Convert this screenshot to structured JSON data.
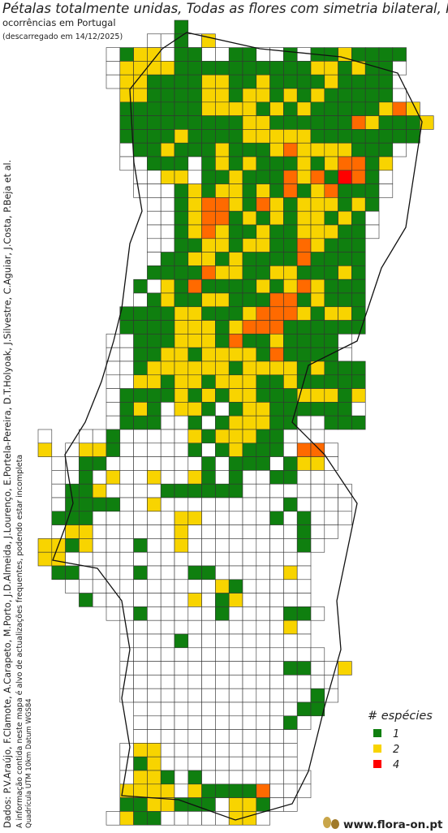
{
  "title": "Pétalas totalmente unidas, Todas as flores com simetria bilateral, Flor",
  "subtitle": "ocorrências em Portugal",
  "download_note": "(descarregado em 14/12/2025)",
  "credits": "Dados: P.V.Araújo, F.Clamote, A.Carapeto, M.Porto, J.D.Almeida, J.Lourenço, E.Portela-Pereira, D.T.Holyoak, J.Silvestre, C.Aguiar, J.Costa, P.Beja et al.",
  "notice": "A informação contida neste mapa é alvo de actualizações frequentes, podendo estar incompleta",
  "grid_note": "Quadrícula UTM 10km Datum WGS84",
  "footer": "www.flora-on.pt",
  "colors": {
    "1": "#0f7f0f",
    "2": "#f8d400",
    "3": "#ff6a00",
    "4": "#ff0000"
  },
  "legend": {
    "title": "# espécies",
    "items": [
      {
        "value": 1
      },
      {
        "value": 2
      },
      {
        "value": 4
      }
    ]
  },
  "grid": {
    "rows": [
      [
        null,
        null,
        null,
        null,
        null,
        null,
        null,
        null,
        null,
        null,
        1
      ],
      [
        null,
        null,
        null,
        null,
        null,
        null,
        null,
        null,
        0,
        0,
        1,
        0,
        2
      ],
      [
        null,
        null,
        null,
        null,
        null,
        0,
        1,
        2,
        2,
        0,
        1,
        1,
        0,
        0,
        1,
        1,
        0,
        0,
        1,
        0,
        1,
        1,
        2,
        1,
        1,
        1,
        1
      ],
      [
        null,
        null,
        null,
        null,
        null,
        0,
        2,
        2,
        2,
        2,
        1,
        1,
        1,
        1,
        1,
        1,
        1,
        1,
        1,
        1,
        2,
        2,
        1,
        2,
        1,
        1,
        0
      ],
      [
        null,
        null,
        null,
        null,
        null,
        0,
        2,
        2,
        1,
        1,
        1,
        1,
        2,
        2,
        1,
        1,
        2,
        1,
        1,
        1,
        1,
        2,
        1,
        1,
        1,
        1
      ],
      [
        null,
        null,
        null,
        null,
        null,
        null,
        2,
        2,
        1,
        1,
        1,
        1,
        2,
        2,
        1,
        2,
        2,
        1,
        2,
        1,
        2,
        1,
        1,
        1,
        1,
        1,
        0
      ],
      [
        null,
        null,
        null,
        null,
        null,
        null,
        1,
        1,
        1,
        1,
        1,
        1,
        2,
        2,
        2,
        2,
        1,
        2,
        1,
        2,
        1,
        1,
        1,
        1,
        1,
        2,
        3,
        2
      ],
      [
        null,
        null,
        null,
        null,
        null,
        null,
        1,
        1,
        1,
        1,
        1,
        1,
        1,
        1,
        1,
        2,
        2,
        1,
        1,
        1,
        1,
        1,
        1,
        3,
        2,
        1,
        1,
        1,
        2
      ],
      [
        null,
        null,
        null,
        null,
        null,
        null,
        1,
        1,
        1,
        1,
        2,
        1,
        1,
        1,
        1,
        2,
        2,
        2,
        2,
        2,
        1,
        1,
        1,
        1,
        1,
        1,
        1,
        1
      ],
      [
        null,
        null,
        null,
        null,
        null,
        null,
        0,
        1,
        1,
        2,
        1,
        1,
        1,
        2,
        1,
        1,
        1,
        2,
        3,
        2,
        2,
        2,
        2,
        1,
        1,
        1,
        0
      ],
      [
        null,
        null,
        null,
        null,
        null,
        null,
        0,
        0,
        1,
        1,
        1,
        0,
        1,
        2,
        1,
        2,
        1,
        1,
        1,
        2,
        1,
        2,
        3,
        3,
        1,
        2
      ],
      [
        null,
        null,
        null,
        null,
        null,
        null,
        null,
        0,
        0,
        2,
        2,
        0,
        1,
        1,
        2,
        1,
        1,
        1,
        3,
        2,
        3,
        1,
        4,
        3,
        1,
        0
      ],
      [
        null,
        null,
        null,
        null,
        null,
        null,
        null,
        0,
        0,
        0,
        1,
        2,
        1,
        2,
        2,
        1,
        2,
        1,
        3,
        1,
        2,
        3,
        1,
        1,
        1,
        0
      ],
      [
        null,
        null,
        null,
        null,
        null,
        null,
        null,
        null,
        0,
        0,
        1,
        2,
        3,
        3,
        2,
        1,
        3,
        2,
        1,
        2,
        2,
        2,
        1,
        2,
        1
      ],
      [
        null,
        null,
        null,
        null,
        null,
        null,
        null,
        null,
        0,
        0,
        1,
        2,
        3,
        3,
        1,
        2,
        1,
        2,
        1,
        2,
        2,
        1,
        2,
        1,
        0
      ],
      [
        null,
        null,
        null,
        null,
        null,
        null,
        null,
        null,
        0,
        0,
        1,
        2,
        3,
        2,
        1,
        1,
        2,
        1,
        1,
        2,
        2,
        2,
        1,
        1,
        0
      ],
      [
        null,
        null,
        null,
        null,
        null,
        null,
        null,
        null,
        0,
        0,
        1,
        1,
        2,
        2,
        1,
        2,
        2,
        1,
        1,
        3,
        2,
        1,
        1,
        1
      ],
      [
        null,
        null,
        null,
        null,
        null,
        null,
        null,
        null,
        0,
        1,
        1,
        2,
        2,
        1,
        2,
        1,
        1,
        1,
        1,
        3,
        1,
        1,
        1,
        1
      ],
      [
        null,
        null,
        null,
        null,
        null,
        null,
        null,
        null,
        1,
        1,
        1,
        1,
        3,
        2,
        2,
        1,
        1,
        2,
        2,
        1,
        1,
        1,
        2,
        1
      ],
      [
        null,
        null,
        null,
        null,
        null,
        null,
        null,
        1,
        0,
        2,
        1,
        3,
        1,
        1,
        1,
        1,
        2,
        1,
        2,
        3,
        2,
        1,
        1,
        1
      ],
      [
        null,
        null,
        null,
        null,
        null,
        null,
        null,
        0,
        1,
        2,
        1,
        1,
        2,
        2,
        1,
        1,
        1,
        3,
        3,
        1,
        2,
        1,
        1,
        1
      ],
      [
        null,
        null,
        null,
        null,
        null,
        null,
        1,
        1,
        1,
        1,
        2,
        2,
        1,
        1,
        1,
        2,
        3,
        3,
        3,
        2,
        1,
        2,
        2,
        1
      ],
      [
        null,
        null,
        null,
        null,
        null,
        null,
        1,
        1,
        1,
        1,
        2,
        2,
        2,
        1,
        2,
        3,
        3,
        3,
        1,
        1,
        1,
        1,
        1,
        1
      ],
      [
        null,
        null,
        null,
        null,
        null,
        0,
        0,
        1,
        1,
        1,
        2,
        2,
        2,
        1,
        3,
        1,
        1,
        2,
        1,
        1,
        1,
        1,
        0
      ],
      [
        null,
        null,
        null,
        null,
        null,
        0,
        0,
        1,
        1,
        2,
        2,
        1,
        2,
        2,
        2,
        2,
        1,
        3,
        1,
        1,
        1,
        1,
        0
      ],
      [
        null,
        null,
        null,
        null,
        null,
        0,
        0,
        1,
        2,
        2,
        2,
        2,
        2,
        2,
        1,
        2,
        2,
        2,
        2,
        1,
        2,
        1,
        1,
        1
      ],
      [
        null,
        null,
        null,
        null,
        null,
        0,
        0,
        2,
        2,
        1,
        2,
        2,
        1,
        2,
        2,
        2,
        1,
        1,
        2,
        1,
        1,
        1,
        1,
        1
      ],
      [
        null,
        null,
        null,
        null,
        null,
        0,
        1,
        1,
        1,
        1,
        2,
        1,
        2,
        1,
        2,
        2,
        1,
        1,
        1,
        2,
        2,
        2,
        1,
        2
      ],
      [
        null,
        null,
        null,
        null,
        null,
        0,
        1,
        2,
        1,
        0,
        2,
        2,
        1,
        0,
        1,
        2,
        2,
        1,
        1,
        1,
        1,
        1,
        1,
        0
      ],
      [
        null,
        null,
        null,
        null,
        null,
        0,
        1,
        1,
        1,
        0,
        0,
        1,
        0,
        1,
        2,
        2,
        2,
        1,
        1,
        0,
        0,
        1,
        1,
        1
      ],
      [
        0,
        null,
        null,
        0,
        0,
        1,
        0,
        0,
        0,
        0,
        0,
        2,
        1,
        2,
        2,
        2,
        1,
        1,
        0,
        0,
        0
      ],
      [
        2,
        null,
        0,
        2,
        2,
        1,
        0,
        0,
        0,
        0,
        0,
        1,
        0,
        1,
        2,
        1,
        1,
        1,
        0,
        3,
        3,
        0
      ],
      [
        null,
        0,
        0,
        1,
        1,
        0,
        0,
        0,
        0,
        0,
        0,
        0,
        1,
        0,
        1,
        1,
        1,
        0,
        1,
        2,
        2,
        0
      ],
      [
        null,
        0,
        0,
        1,
        0,
        2,
        0,
        0,
        2,
        0,
        0,
        2,
        1,
        0,
        1,
        0,
        0,
        1,
        1,
        0,
        0
      ],
      [
        null,
        0,
        1,
        1,
        2,
        0,
        0,
        0,
        0,
        1,
        1,
        1,
        1,
        1,
        1,
        0,
        0,
        0,
        0,
        0,
        0,
        0,
        0
      ],
      [
        null,
        0,
        1,
        1,
        1,
        1,
        0,
        0,
        2,
        0,
        0,
        0,
        0,
        0,
        0,
        0,
        0,
        0,
        1,
        0,
        0,
        0,
        0
      ],
      [
        null,
        1,
        1,
        1,
        0,
        0,
        0,
        0,
        0,
        0,
        2,
        2,
        0,
        0,
        0,
        0,
        0,
        1,
        0,
        1,
        0,
        0,
        0
      ],
      [
        null,
        0,
        2,
        2,
        0,
        0,
        0,
        0,
        0,
        0,
        2,
        0,
        0,
        0,
        0,
        0,
        0,
        0,
        0,
        1,
        0,
        0
      ],
      [
        2,
        2,
        1,
        2,
        0,
        0,
        0,
        1,
        0,
        0,
        2,
        0,
        0,
        0,
        0,
        0,
        0,
        0,
        0,
        1,
        0
      ],
      [
        2,
        2,
        0,
        0,
        0,
        0,
        0,
        0,
        0,
        0,
        0,
        0,
        0,
        0,
        0,
        0,
        0,
        0,
        0,
        0
      ],
      [
        null,
        1,
        1,
        0,
        0,
        0,
        0,
        1,
        0,
        0,
        0,
        1,
        1,
        0,
        0,
        0,
        0,
        0,
        2,
        0
      ],
      [
        null,
        null,
        0,
        0,
        0,
        0,
        0,
        0,
        0,
        0,
        0,
        0,
        0,
        2,
        1,
        0,
        0,
        0,
        0,
        0
      ],
      [
        null,
        null,
        null,
        1,
        0,
        0,
        0,
        0,
        0,
        0,
        0,
        2,
        0,
        1,
        2,
        0,
        0,
        0,
        0,
        0
      ],
      [
        null,
        null,
        null,
        null,
        null,
        0,
        0,
        1,
        0,
        0,
        0,
        0,
        0,
        1,
        0,
        0,
        0,
        0,
        1,
        1,
        0
      ],
      [
        null,
        null,
        null,
        null,
        null,
        null,
        0,
        0,
        0,
        0,
        0,
        0,
        0,
        0,
        0,
        0,
        0,
        0,
        2,
        0
      ],
      [
        null,
        null,
        null,
        null,
        null,
        null,
        0,
        0,
        0,
        0,
        1,
        0,
        0,
        0,
        0,
        0,
        0,
        0,
        0,
        0
      ],
      [
        null,
        null,
        null,
        null,
        null,
        null,
        0,
        0,
        0,
        0,
        0,
        0,
        0,
        0,
        0,
        0,
        0,
        0,
        0,
        0,
        0
      ],
      [
        null,
        null,
        null,
        null,
        null,
        null,
        0,
        0,
        0,
        0,
        0,
        0,
        0,
        0,
        0,
        0,
        0,
        0,
        1,
        1,
        0,
        0,
        2
      ],
      [
        null,
        null,
        null,
        null,
        null,
        null,
        0,
        0,
        0,
        0,
        0,
        0,
        0,
        0,
        0,
        0,
        0,
        0,
        0,
        0,
        0,
        0
      ],
      [
        null,
        null,
        null,
        null,
        null,
        null,
        0,
        0,
        0,
        0,
        0,
        0,
        0,
        0,
        0,
        0,
        0,
        0,
        0,
        0,
        1,
        0
      ],
      [
        null,
        null,
        null,
        null,
        null,
        null,
        null,
        0,
        0,
        0,
        0,
        0,
        0,
        0,
        0,
        0,
        0,
        0,
        0,
        1,
        1
      ],
      [
        null,
        null,
        null,
        null,
        null,
        null,
        null,
        0,
        0,
        0,
        0,
        0,
        0,
        0,
        0,
        0,
        0,
        0,
        1,
        0
      ],
      [
        null,
        null,
        null,
        null,
        null,
        null,
        null,
        0,
        0,
        0,
        0,
        0,
        0,
        0,
        0,
        0,
        0,
        0,
        0
      ],
      [
        null,
        null,
        null,
        null,
        null,
        null,
        0,
        2,
        2,
        0,
        0,
        0,
        0,
        0,
        0,
        0,
        0,
        0,
        0
      ],
      [
        null,
        null,
        null,
        null,
        null,
        null,
        0,
        1,
        2,
        0,
        0,
        0,
        0,
        0,
        0,
        0,
        0,
        0,
        0
      ],
      [
        null,
        null,
        null,
        null,
        null,
        null,
        0,
        2,
        2,
        1,
        0,
        1,
        0,
        0,
        0,
        0,
        0,
        0,
        0,
        0
      ],
      [
        null,
        null,
        null,
        null,
        null,
        null,
        2,
        2,
        2,
        2,
        0,
        2,
        1,
        1,
        1,
        1,
        3,
        0,
        0,
        0
      ],
      [
        null,
        null,
        null,
        null,
        null,
        null,
        1,
        1,
        2,
        2,
        1,
        1,
        1,
        0,
        2,
        2,
        1,
        0,
        0
      ],
      [
        null,
        null,
        null,
        null,
        null,
        0,
        2,
        1,
        1,
        0,
        0,
        0,
        0,
        0,
        2,
        2,
        0
      ]
    ]
  }
}
